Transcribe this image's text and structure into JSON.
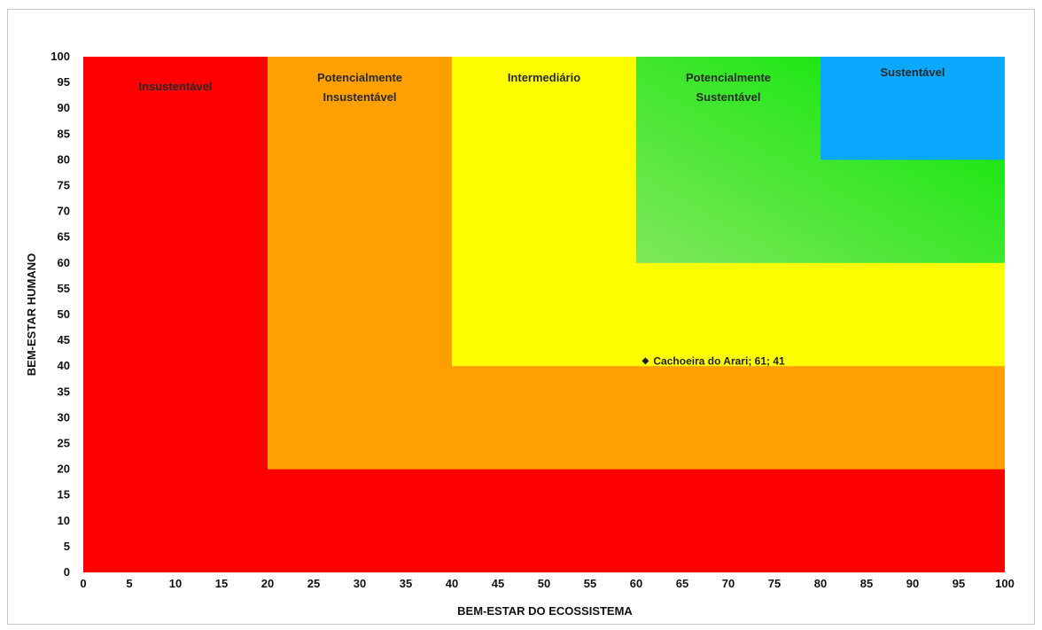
{
  "chart_data": {
    "type": "scatter",
    "xlabel": "BEM-ESTAR DO ECOSSISTEMA",
    "ylabel": "BEM-ESTAR HUMANO",
    "xlim": [
      0,
      100
    ],
    "ylim": [
      0,
      100
    ],
    "x_ticks": [
      0,
      5,
      10,
      15,
      20,
      25,
      30,
      35,
      40,
      45,
      50,
      55,
      60,
      65,
      70,
      75,
      80,
      85,
      90,
      95,
      100
    ],
    "y_ticks": [
      0,
      5,
      10,
      15,
      20,
      25,
      30,
      35,
      40,
      45,
      50,
      55,
      60,
      65,
      70,
      75,
      80,
      85,
      90,
      95,
      100
    ],
    "grid": false,
    "zones": [
      {
        "label": "Insustentável",
        "min": 0,
        "color": "#ff0000"
      },
      {
        "label": "Potencialmente Insustentável",
        "lines": [
          "Potencialmente",
          "Insustentável"
        ],
        "min": 20,
        "color": "#ffa000"
      },
      {
        "label": "Intermediário",
        "min": 40,
        "color": "#ffff00"
      },
      {
        "label": "Potencialmente Sustentável",
        "lines": [
          "Potencialmente",
          "Sustentável"
        ],
        "min": 60,
        "color": "#33e633"
      },
      {
        "label": "Sustentável",
        "min": 80,
        "color": "#0aa8ff"
      }
    ],
    "points": [
      {
        "x": 61,
        "y": 41,
        "label": "Cachoeira do Arari; 61; 41"
      }
    ]
  }
}
